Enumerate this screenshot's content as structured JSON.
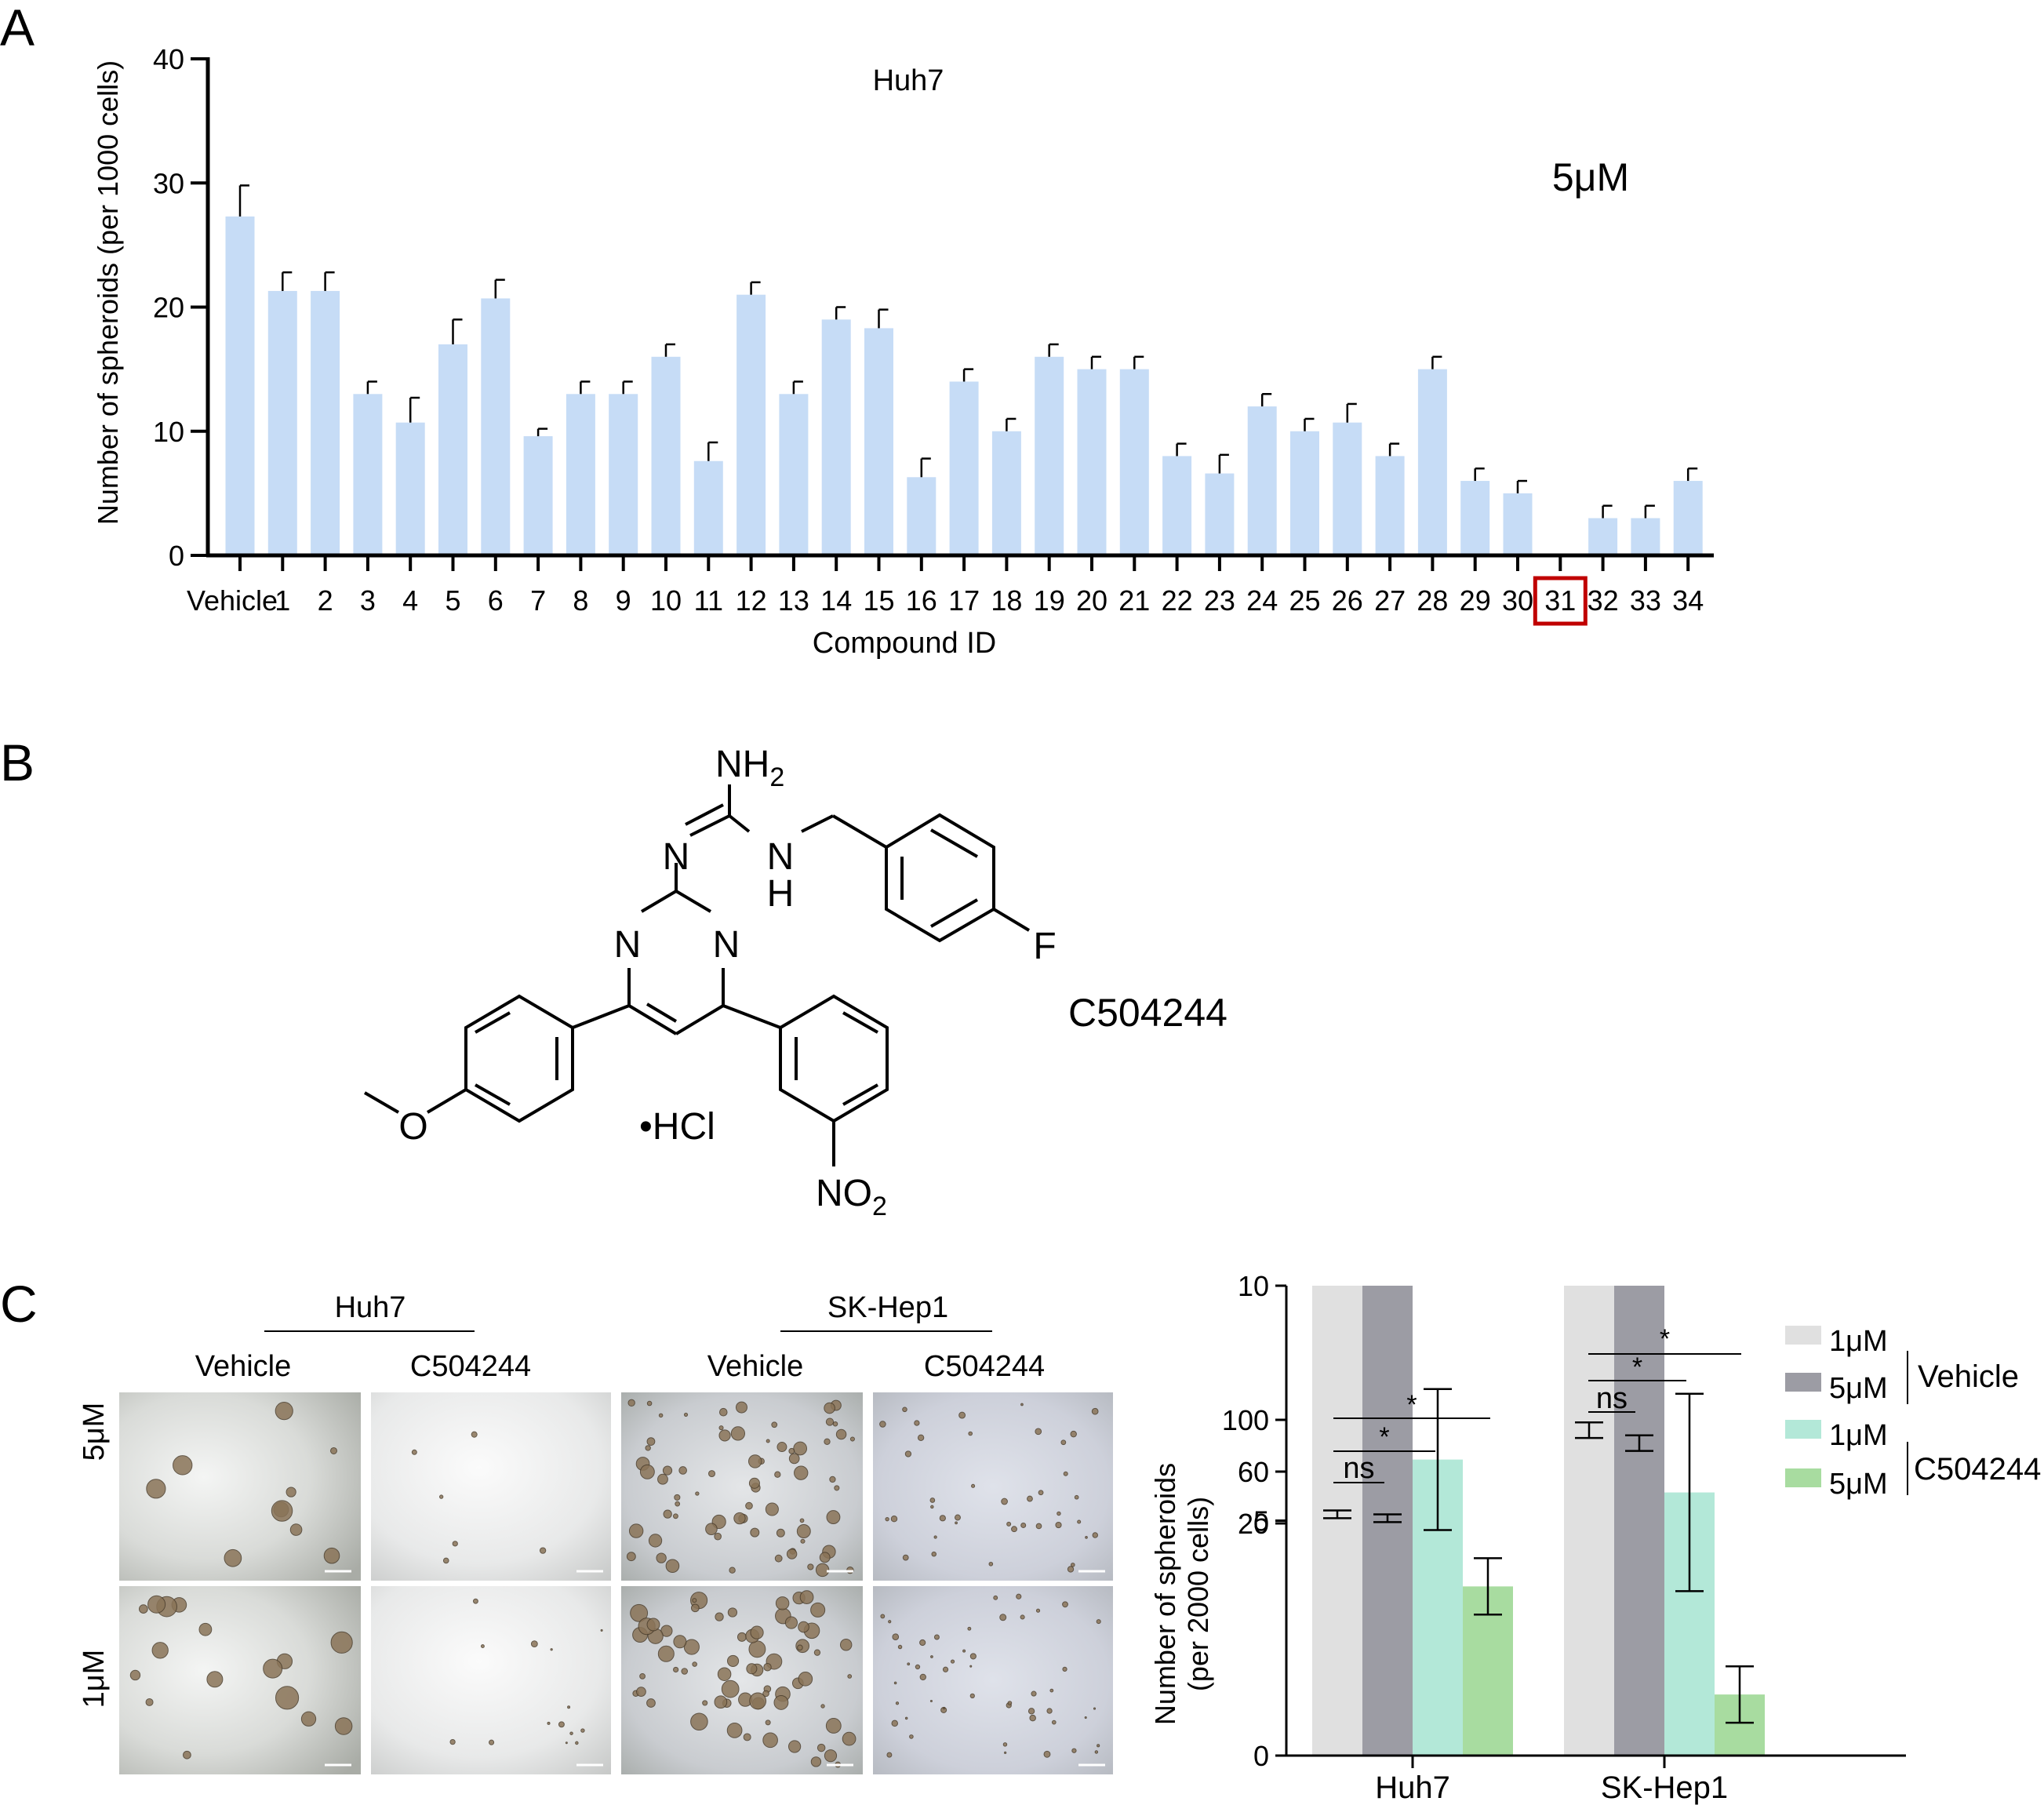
{
  "panels": {
    "a": "A",
    "b": "B",
    "c": "C"
  },
  "chart_data": [
    {
      "type": "bar",
      "title": "Huh7",
      "annotation": "5μM",
      "xlabel": "Compound ID",
      "ylabel": "Number of spheroids (per 1000 cells)",
      "ylim": [
        0,
        40
      ],
      "yticks": [
        0,
        10,
        20,
        30,
        40
      ],
      "highlighted_category": "31",
      "bar_color": "#c6dcf6",
      "highlight_color": "#c00000",
      "categories": [
        "Vehicle",
        "1",
        "2",
        "3",
        "4",
        "5",
        "6",
        "7",
        "8",
        "9",
        "10",
        "11",
        "12",
        "13",
        "14",
        "15",
        "16",
        "17",
        "18",
        "19",
        "20",
        "21",
        "22",
        "23",
        "24",
        "25",
        "26",
        "27",
        "28",
        "29",
        "30",
        "31",
        "32",
        "33",
        "34"
      ],
      "values": [
        27.3,
        21.3,
        21.3,
        13,
        10.7,
        17,
        20.7,
        9.6,
        13,
        13,
        16,
        7.6,
        21,
        13,
        19,
        18.3,
        6.3,
        14,
        10,
        16,
        15,
        15,
        8,
        6.6,
        12,
        10,
        10.7,
        8,
        15,
        6,
        5,
        0,
        3,
        3,
        6
      ],
      "errors": [
        2.5,
        1.5,
        1.5,
        1,
        2,
        2,
        1.5,
        0.6,
        1,
        1,
        1,
        1.5,
        1,
        1,
        1,
        1.5,
        1.5,
        1,
        1,
        1,
        1,
        1,
        1,
        1.5,
        1,
        1,
        1.5,
        1,
        1,
        1,
        1,
        0,
        1,
        1,
        1
      ]
    },
    {
      "type": "bar",
      "xlabel": "",
      "ylabel_line1": "Number of spheroids",
      "ylabel_line2": "(per 2000 cells)",
      "categories": [
        "Huh7",
        "SK-Hep1"
      ],
      "broken_axis": true,
      "lower_ylim": [
        0,
        10
      ],
      "lower_yticks": [
        0,
        5,
        10
      ],
      "upper_ylim": [
        20,
        100
      ],
      "upper_yticks": [
        20,
        60,
        100
      ],
      "series": [
        {
          "name": "1μM",
          "group": "Vehicle",
          "color": "#e0e0e0",
          "values": [
            27,
            92
          ],
          "errors": [
            3,
            6
          ]
        },
        {
          "name": "5μM",
          "group": "Vehicle",
          "color": "#9c9ca4",
          "values": [
            24,
            82
          ],
          "errors": [
            3,
            6
          ]
        },
        {
          "name": "1μM",
          "group": "C504244",
          "color": "#b3e8d8",
          "values": [
            6.3,
            5.6
          ],
          "errors": [
            1.5,
            2.1
          ]
        },
        {
          "name": "5μM",
          "group": "C504244",
          "color": "#a8dca0",
          "values": [
            3.6,
            1.3
          ],
          "errors": [
            0.6,
            0.6
          ]
        }
      ],
      "legend_groups": [
        "Vehicle",
        "C504244"
      ],
      "significance": [
        {
          "group": "Huh7",
          "label": "ns"
        },
        {
          "group": "Huh7",
          "label": "*"
        },
        {
          "group": "Huh7",
          "label": "*"
        },
        {
          "group": "SK-Hep1",
          "label": "ns"
        },
        {
          "group": "SK-Hep1",
          "label": "*"
        },
        {
          "group": "SK-Hep1",
          "label": "*"
        }
      ]
    }
  ],
  "structure": {
    "compound_name": "C504244",
    "atoms": {
      "nh2": "NH",
      "nh2_sub": "2",
      "n_imine": "N",
      "nh": "N",
      "h": "H",
      "n_left": "N",
      "n_right": "N",
      "f": "F",
      "o": "O",
      "salt": "•HCl",
      "no2": "NO",
      "no2_sub": "2"
    }
  },
  "micrographs": {
    "groups": [
      "Huh7",
      "SK-Hep1"
    ],
    "columns": [
      "Vehicle",
      "C504244",
      "Vehicle",
      "C504244"
    ],
    "rows": [
      "5μM",
      "1μM"
    ]
  }
}
